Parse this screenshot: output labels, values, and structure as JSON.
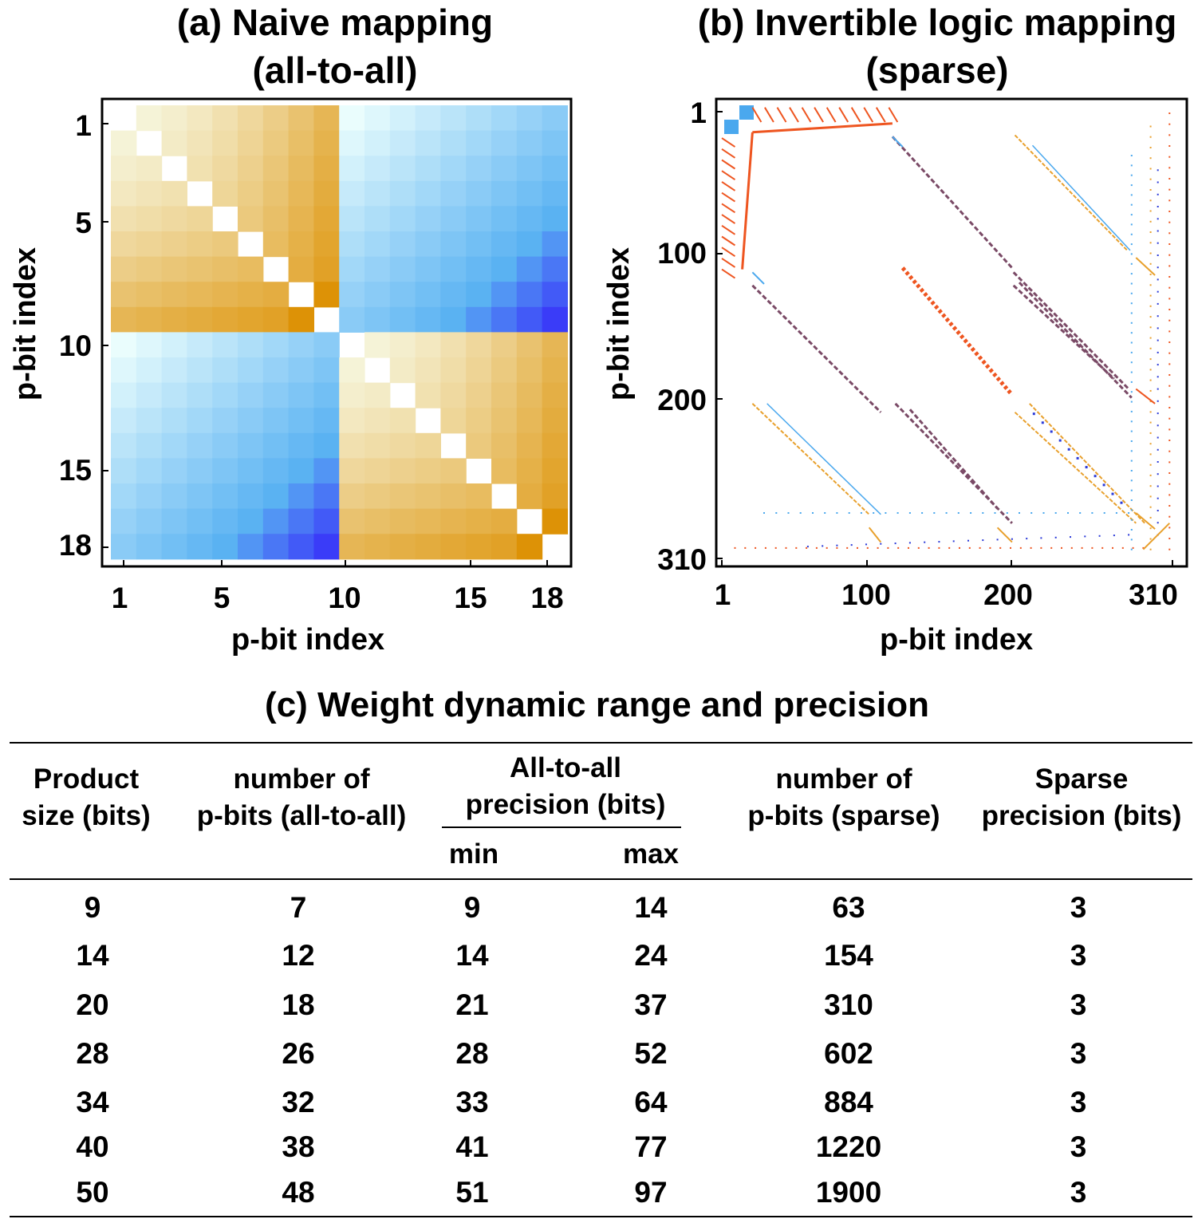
{
  "panel_a": {
    "title": "(a) Naive mapping\n(all-to-all)",
    "xlabel": "p-bit index",
    "ylabel": "p-bit index"
  },
  "panel_b": {
    "title": "(b) Invertible logic mapping\n(sparse)",
    "xlabel": "p-bit index",
    "ylabel": "p-bit index"
  },
  "colors": {
    "light_gold": "#f6f5dc",
    "dark_gold": "#dd9206",
    "light_cyan": "#eafdfd",
    "mid_blue": "#5ab2f2",
    "dark_blue": "#3a3cf8",
    "sparse_red": "#ee5520",
    "sparse_orange": "#e8a02c",
    "sparse_blue": "#4aa8ee",
    "sparse_navy": "#2b3ad8"
  },
  "chart_data": [
    {
      "type": "heatmap",
      "title": "(a) Naive mapping (all-to-all)",
      "xlabel": "p-bit index",
      "ylabel": "p-bit index",
      "n": 18,
      "xticks": [
        1,
        5,
        10,
        15,
        18
      ],
      "yticks": [
        1,
        5,
        10,
        15,
        18
      ],
      "diagonal": "zero",
      "blocks": "same-half positive (gold), cross-half negative (blue); magnitude grows with index",
      "xlim": [
        1,
        18
      ],
      "ylim": [
        1,
        18
      ]
    },
    {
      "type": "heatmap",
      "title": "(b) Invertible logic mapping (sparse)",
      "xlabel": "p-bit index",
      "ylabel": "p-bit index",
      "n": 310,
      "xticks": [
        1,
        100,
        200,
        310
      ],
      "yticks": [
        1,
        100,
        200,
        310
      ],
      "xlim": [
        1,
        310
      ],
      "ylim": [
        1,
        310
      ],
      "structure": "sparse banded diagonals"
    },
    {
      "type": "table",
      "title": "(c) Weight dynamic range and precision",
      "headers": {
        "product": "Product\nsize (bits)",
        "nall": "number of\np-bits (all-to-all)",
        "group": "All-to-all\nprecision (bits)",
        "min": "min",
        "max": "max",
        "nsparse": "number of\np-bits (sparse)",
        "sprec": "Sparse\nprecision (bits)"
      },
      "rows": [
        [
          "9",
          "7",
          "9",
          "14",
          "63",
          "3"
        ],
        [
          "14",
          "12",
          "14",
          "24",
          "154",
          "3"
        ],
        [
          "20",
          "18",
          "21",
          "37",
          "310",
          "3"
        ],
        [
          "28",
          "26",
          "28",
          "52",
          "602",
          "3"
        ],
        [
          "34",
          "32",
          "33",
          "64",
          "884",
          "3"
        ],
        [
          "40",
          "38",
          "41",
          "77",
          "1220",
          "3"
        ],
        [
          "50",
          "48",
          "51",
          "97",
          "1900",
          "3"
        ]
      ]
    }
  ]
}
